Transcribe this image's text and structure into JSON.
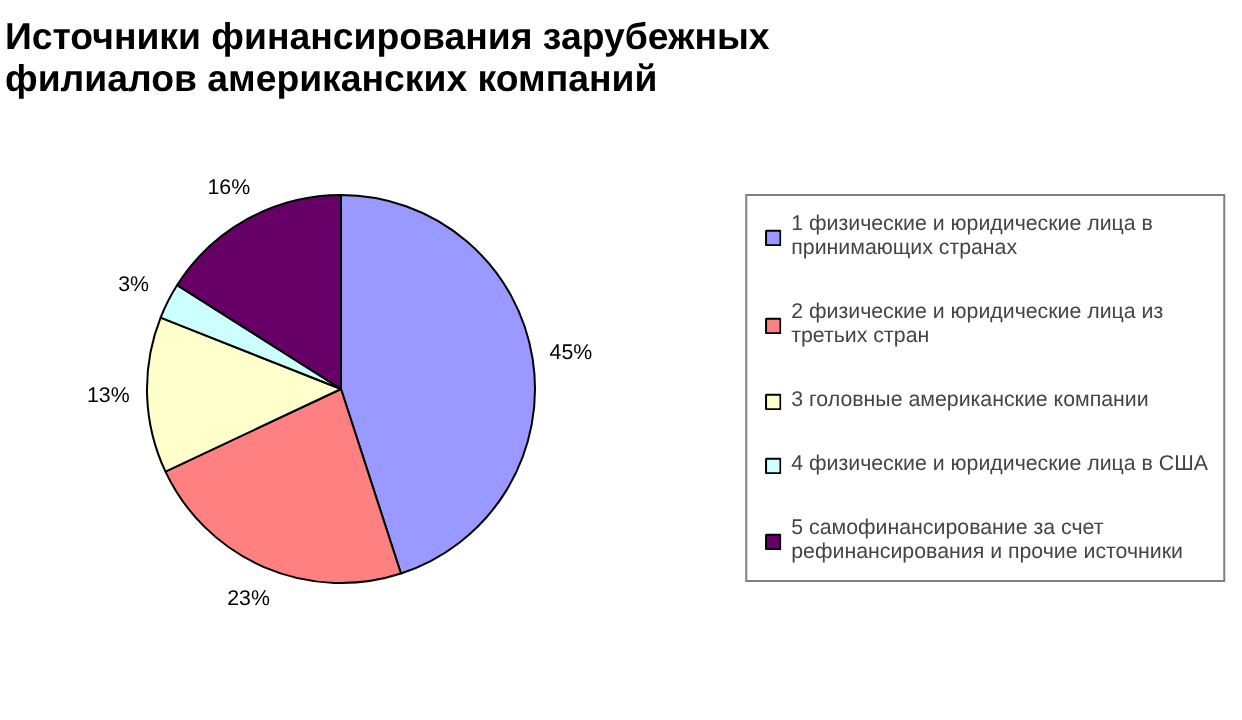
{
  "chart_data": {
    "type": "pie",
    "title": "Источники финансирования зарубежных филиалов американских компаний",
    "categories": [
      "1 физические и юридические лица в принимающих странах",
      "2 физические и юридические лица из третьих стран",
      "3 головные американские компании",
      "4 физические и юридические лица в США",
      "5 самофинансирование за счет рефинансирования и прочие источники"
    ],
    "values": [
      45,
      23,
      13,
      3,
      16
    ],
    "value_labels": [
      "45%",
      "23%",
      "13%",
      "3%",
      "16%"
    ],
    "colors": [
      "#9999ff",
      "#ff8080",
      "#ffffcc",
      "#ccffff",
      "#660066"
    ],
    "legend": "right"
  }
}
